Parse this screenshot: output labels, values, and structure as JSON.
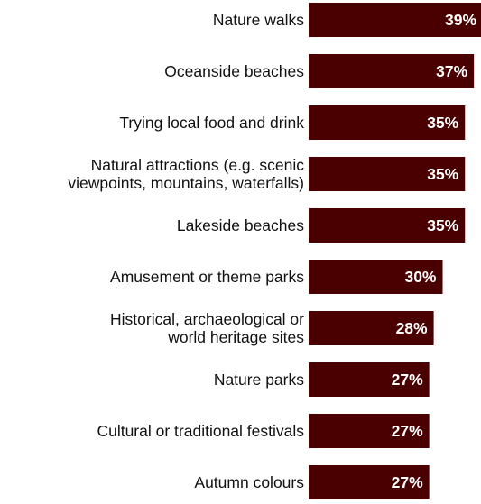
{
  "chart_data": {
    "type": "bar",
    "orientation": "horizontal",
    "categories": [
      [
        "Nature walks"
      ],
      [
        "Oceanside beaches"
      ],
      [
        "Trying local food and drink"
      ],
      [
        "Natural attractions (e.g. scenic",
        "viewpoints, mountains, waterfalls)"
      ],
      [
        "Lakeside beaches"
      ],
      [
        "Amusement or theme parks"
      ],
      [
        "Historical, archaeological or",
        "world heritage sites"
      ],
      [
        "Nature parks"
      ],
      [
        "Cultural or traditional festivals"
      ],
      [
        "Autumn colours"
      ]
    ],
    "values": [
      39,
      37,
      35,
      35,
      35,
      30,
      28,
      27,
      27,
      27
    ],
    "value_labels": [
      "39%",
      "37%",
      "35%",
      "35%",
      "35%",
      "30%",
      "28%",
      "27%",
      "27%",
      "27%"
    ],
    "unit": "%",
    "bar_color": "#4a0000",
    "grid": false,
    "legend": "none"
  }
}
